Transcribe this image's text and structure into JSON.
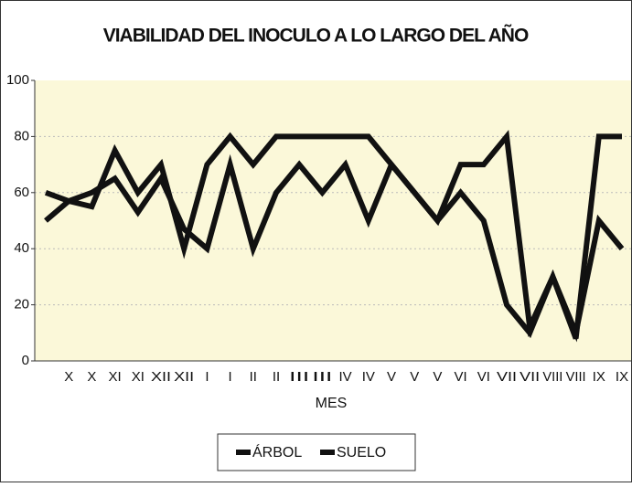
{
  "chart_data": {
    "type": "line",
    "title": "VIABILIDAD DEL INOCULO A LO LARGO DEL AÑO",
    "x_label": "MES",
    "categories": [
      null,
      "X",
      "X",
      "XI",
      "XI",
      "XII",
      "XII",
      "I",
      "I",
      "II",
      "II",
      "III",
      "III",
      "IV",
      "IV",
      "V",
      "V",
      "V",
      "VI",
      "VI",
      "VII",
      "VII",
      "VIII",
      "VIII",
      "IX",
      "IX"
    ],
    "series": [
      {
        "name": "ÁRBOL",
        "color": "#111111",
        "values": [
          50,
          57,
          60,
          65,
          53,
          65,
          47,
          40,
          70,
          40,
          60,
          70,
          60,
          70,
          50,
          70,
          60,
          50,
          60,
          50,
          20,
          10,
          30,
          10,
          50,
          40
        ]
      },
      {
        "name": "SUELO",
        "color": "#111111",
        "values": [
          60,
          57,
          55,
          75,
          60,
          70,
          40,
          70,
          80,
          70,
          80,
          80,
          80,
          80,
          80,
          70,
          60,
          50,
          70,
          70,
          80,
          12,
          30,
          8,
          80,
          80
        ]
      }
    ],
    "ylim": [
      0,
      100
    ],
    "yticks": [
      0,
      20,
      40,
      60,
      80,
      100
    ],
    "grid": true,
    "legend": "bottom"
  }
}
